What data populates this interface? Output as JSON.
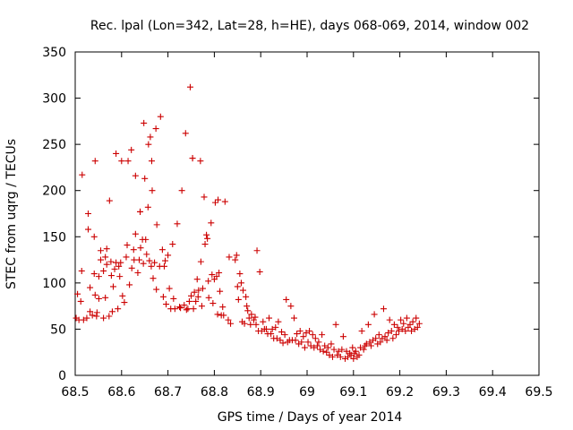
{
  "chart_data": {
    "type": "scatter",
    "title": "Rec. lpal (Lon=342, Lat=28, h=HE), days 068-069, 2014, window 002",
    "xlabel": "GPS time / Days of year 2014",
    "ylabel": "STEC from uqrg / TECUs",
    "xlim": [
      68.5,
      69.5
    ],
    "ylim": [
      0,
      350
    ],
    "xticks": [
      68.5,
      68.6,
      68.7,
      68.8,
      68.9,
      69.0,
      69.1,
      69.2,
      69.3,
      69.4,
      69.5
    ],
    "xtick_labels": [
      "68.5",
      "68.6",
      "68.7",
      "68.8",
      "68.9",
      "69",
      "69.1",
      "69.2",
      "69.3",
      "69.4",
      "69.5"
    ],
    "yticks": [
      0,
      50,
      100,
      150,
      200,
      250,
      300,
      350
    ],
    "ytick_labels": [
      "0",
      "50",
      "100",
      "150",
      "200",
      "250",
      "300",
      "350"
    ],
    "marker": "+",
    "color": "#cc0000",
    "series": [
      {
        "name": "STEC",
        "points": [
          [
            68.502,
            62
          ],
          [
            68.505,
            88
          ],
          [
            68.508,
            60
          ],
          [
            68.512,
            80
          ],
          [
            68.514,
            113
          ],
          [
            68.515,
            217
          ],
          [
            68.518,
            60
          ],
          [
            68.525,
            62
          ],
          [
            68.528,
            175
          ],
          [
            68.528,
            158
          ],
          [
            68.532,
            69
          ],
          [
            68.532,
            95
          ],
          [
            68.537,
            65
          ],
          [
            68.541,
            110
          ],
          [
            68.541,
            150
          ],
          [
            68.543,
            87
          ],
          [
            68.543,
            232
          ],
          [
            68.546,
            64
          ],
          [
            68.547,
            68
          ],
          [
            68.551,
            83
          ],
          [
            68.551,
            107
          ],
          [
            68.555,
            125
          ],
          [
            68.555,
            135
          ],
          [
            68.561,
            62
          ],
          [
            68.561,
            113
          ],
          [
            68.565,
            84
          ],
          [
            68.565,
            128
          ],
          [
            68.568,
            120
          ],
          [
            68.568,
            137
          ],
          [
            68.573,
            64
          ],
          [
            68.574,
            189
          ],
          [
            68.577,
            123
          ],
          [
            68.578,
            108
          ],
          [
            68.58,
            69
          ],
          [
            68.582,
            96
          ],
          [
            68.585,
            115
          ],
          [
            68.588,
            240
          ],
          [
            68.588,
            122
          ],
          [
            68.592,
            72
          ],
          [
            68.594,
            118
          ],
          [
            68.596,
            107
          ],
          [
            68.598,
            122
          ],
          [
            68.6,
            232
          ],
          [
            68.602,
            86
          ],
          [
            68.606,
            79
          ],
          [
            68.61,
            128
          ],
          [
            68.612,
            141
          ],
          [
            68.614,
            232
          ],
          [
            68.617,
            98
          ],
          [
            68.621,
            244
          ],
          [
            68.622,
            116
          ],
          [
            68.626,
            136
          ],
          [
            68.627,
            125
          ],
          [
            68.63,
            216
          ],
          [
            68.63,
            153
          ],
          [
            68.635,
            111
          ],
          [
            68.638,
            125
          ],
          [
            68.64,
            177
          ],
          [
            68.64,
            177
          ],
          [
            68.641,
            138
          ],
          [
            68.645,
            147
          ],
          [
            68.647,
            121
          ],
          [
            68.648,
            273
          ],
          [
            68.65,
            213
          ],
          [
            68.652,
            147
          ],
          [
            68.654,
            131
          ],
          [
            68.657,
            182
          ],
          [
            68.658,
            250
          ],
          [
            68.66,
            124
          ],
          [
            68.662,
            258
          ],
          [
            68.664,
            118
          ],
          [
            68.665,
            232
          ],
          [
            68.666,
            200
          ],
          [
            68.668,
            105
          ],
          [
            68.671,
            122
          ],
          [
            68.674,
            267
          ],
          [
            68.675,
            93
          ],
          [
            68.676,
            163
          ],
          [
            68.682,
            118
          ],
          [
            68.684,
            280
          ],
          [
            68.688,
            136
          ],
          [
            68.69,
            85
          ],
          [
            68.692,
            118
          ],
          [
            68.694,
            124
          ],
          [
            68.696,
            77
          ],
          [
            68.7,
            130
          ],
          [
            68.703,
            94
          ],
          [
            68.706,
            72
          ],
          [
            68.71,
            142
          ],
          [
            68.712,
            83
          ],
          [
            68.715,
            72
          ],
          [
            68.72,
            164
          ],
          [
            68.725,
            74
          ],
          [
            68.727,
            73
          ],
          [
            68.73,
            200
          ],
          [
            68.735,
            76
          ],
          [
            68.738,
            262
          ],
          [
            68.74,
            71
          ],
          [
            68.743,
            72
          ],
          [
            68.746,
            80
          ],
          [
            68.748,
            312
          ],
          [
            68.75,
            86
          ],
          [
            68.753,
            235
          ],
          [
            68.753,
            235
          ],
          [
            68.755,
            72
          ],
          [
            68.757,
            90
          ],
          [
            68.76,
            80
          ],
          [
            68.763,
            104
          ],
          [
            68.765,
            85
          ],
          [
            68.766,
            92
          ],
          [
            68.77,
            232
          ],
          [
            68.771,
            123
          ],
          [
            68.773,
            75
          ],
          [
            68.775,
            94
          ],
          [
            68.778,
            193
          ],
          [
            68.78,
            142
          ],
          [
            68.783,
            152
          ],
          [
            68.785,
            148
          ],
          [
            68.787,
            102
          ],
          [
            68.788,
            84
          ],
          [
            68.793,
            165
          ],
          [
            68.795,
            109
          ],
          [
            68.797,
            78
          ],
          [
            68.8,
            104
          ],
          [
            68.802,
            187
          ],
          [
            68.805,
            107
          ],
          [
            68.807,
            66
          ],
          [
            68.808,
            190
          ],
          [
            68.81,
            111
          ],
          [
            68.812,
            91
          ],
          [
            68.815,
            65
          ],
          [
            68.818,
            74
          ],
          [
            68.82,
            65
          ],
          [
            68.823,
            188
          ],
          [
            68.83,
            60
          ],
          [
            68.832,
            128
          ],
          [
            68.835,
            56
          ],
          [
            68.845,
            125
          ],
          [
            68.848,
            130
          ],
          [
            68.85,
            96
          ],
          [
            68.852,
            82
          ],
          [
            68.855,
            110
          ],
          [
            68.858,
            100
          ],
          [
            68.86,
            58
          ],
          [
            68.862,
            92
          ],
          [
            68.865,
            56
          ],
          [
            68.868,
            85
          ],
          [
            68.87,
            75
          ],
          [
            68.872,
            70
          ],
          [
            68.875,
            62
          ],
          [
            68.878,
            55
          ],
          [
            68.88,
            66
          ],
          [
            68.885,
            60
          ],
          [
            68.888,
            63
          ],
          [
            68.89,
            55
          ],
          [
            68.892,
            135
          ],
          [
            68.895,
            48
          ],
          [
            68.898,
            112
          ],
          [
            68.902,
            48
          ],
          [
            68.905,
            58
          ],
          [
            68.908,
            50
          ],
          [
            68.912,
            50
          ],
          [
            68.915,
            45
          ],
          [
            68.918,
            62
          ],
          [
            68.922,
            45
          ],
          [
            68.925,
            50
          ],
          [
            68.928,
            40
          ],
          [
            68.932,
            52
          ],
          [
            68.935,
            40
          ],
          [
            68.938,
            58
          ],
          [
            68.942,
            38
          ],
          [
            68.945,
            47
          ],
          [
            68.948,
            35
          ],
          [
            68.952,
            44
          ],
          [
            68.955,
            82
          ],
          [
            68.958,
            36
          ],
          [
            68.962,
            38
          ],
          [
            68.965,
            75
          ],
          [
            68.968,
            38
          ],
          [
            68.972,
            62
          ],
          [
            68.975,
            38
          ],
          [
            68.978,
            45
          ],
          [
            68.982,
            34
          ],
          [
            68.985,
            48
          ],
          [
            68.988,
            36
          ],
          [
            68.992,
            42
          ],
          [
            68.995,
            30
          ],
          [
            68.998,
            46
          ],
          [
            69.002,
            36
          ],
          [
            69.005,
            48
          ],
          [
            69.008,
            32
          ],
          [
            69.012,
            44
          ],
          [
            69.015,
            30
          ],
          [
            69.018,
            40
          ],
          [
            69.022,
            32
          ],
          [
            69.025,
            36
          ],
          [
            69.028,
            28
          ],
          [
            69.032,
            44
          ],
          [
            69.035,
            26
          ],
          [
            69.038,
            32
          ],
          [
            69.042,
            25
          ],
          [
            69.045,
            30
          ],
          [
            69.048,
            22
          ],
          [
            69.052,
            34
          ],
          [
            69.055,
            20
          ],
          [
            69.058,
            28
          ],
          [
            69.062,
            55
          ],
          [
            69.065,
            22
          ],
          [
            69.068,
            26
          ],
          [
            69.072,
            20
          ],
          [
            69.075,
            28
          ],
          [
            69.078,
            42
          ],
          [
            69.082,
            18
          ],
          [
            69.085,
            26
          ],
          [
            69.088,
            20
          ],
          [
            69.092,
            24
          ],
          [
            69.095,
            22
          ],
          [
            69.098,
            30
          ],
          [
            69.1,
            18
          ],
          [
            69.102,
            24
          ],
          [
            69.105,
            26
          ],
          [
            69.108,
            20
          ],
          [
            69.112,
            22
          ],
          [
            69.115,
            30
          ],
          [
            69.118,
            48
          ],
          [
            69.122,
            28
          ],
          [
            69.125,
            32
          ],
          [
            69.128,
            34
          ],
          [
            69.132,
            55
          ],
          [
            69.135,
            36
          ],
          [
            69.138,
            32
          ],
          [
            69.142,
            38
          ],
          [
            69.145,
            66
          ],
          [
            69.148,
            40
          ],
          [
            69.152,
            34
          ],
          [
            69.155,
            44
          ],
          [
            69.158,
            36
          ],
          [
            69.162,
            40
          ],
          [
            69.165,
            72
          ],
          [
            69.168,
            42
          ],
          [
            69.172,
            38
          ],
          [
            69.175,
            46
          ],
          [
            69.178,
            60
          ],
          [
            69.182,
            48
          ],
          [
            69.185,
            40
          ],
          [
            69.188,
            55
          ],
          [
            69.192,
            44
          ],
          [
            69.195,
            52
          ],
          [
            69.198,
            48
          ],
          [
            69.202,
            60
          ],
          [
            69.205,
            50
          ],
          [
            69.208,
            56
          ],
          [
            69.212,
            48
          ],
          [
            69.215,
            62
          ],
          [
            69.218,
            52
          ],
          [
            69.222,
            55
          ],
          [
            69.225,
            48
          ],
          [
            69.228,
            58
          ],
          [
            69.232,
            50
          ],
          [
            69.235,
            62
          ],
          [
            69.238,
            52
          ],
          [
            69.242,
            56
          ]
        ]
      }
    ]
  }
}
